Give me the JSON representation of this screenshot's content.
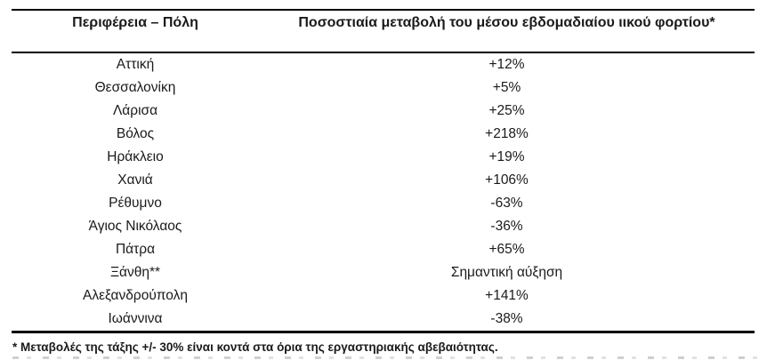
{
  "table": {
    "columns": [
      {
        "label": "Περιφέρεια – Πόλη"
      },
      {
        "label": "Ποσοστιαία μεταβολή του μέσου εβδομαδιαίου ιικού φορτίου*"
      }
    ],
    "rows": [
      {
        "city": "Αττική",
        "change": "+12%"
      },
      {
        "city": "Θεσσαλονίκη",
        "change": "+5%"
      },
      {
        "city": "Λάρισα",
        "change": "+25%"
      },
      {
        "city": "Βόλος",
        "change": "+218%"
      },
      {
        "city": "Ηράκλειο",
        "change": "+19%"
      },
      {
        "city": "Χανιά",
        "change": "+106%"
      },
      {
        "city": "Ρέθυμνο",
        "change": "-63%"
      },
      {
        "city": "Άγιος Νικόλαος",
        "change": "-36%"
      },
      {
        "city": "Πάτρα",
        "change": "+65%"
      },
      {
        "city": "Ξάνθη**",
        "change": "Σημαντική αύξηση"
      },
      {
        "city": "Αλεξανδρούπολη",
        "change": "+141%"
      },
      {
        "city": "Ιωάννινα",
        "change": "-38%"
      }
    ]
  },
  "footnote": "* Μεταβολές της τάξης +/- 30% είναι κοντά στα όρια της εργαστηριακής αβεβαιότητας.",
  "colors": {
    "text": "#1a1a1a",
    "border": "#000000"
  }
}
